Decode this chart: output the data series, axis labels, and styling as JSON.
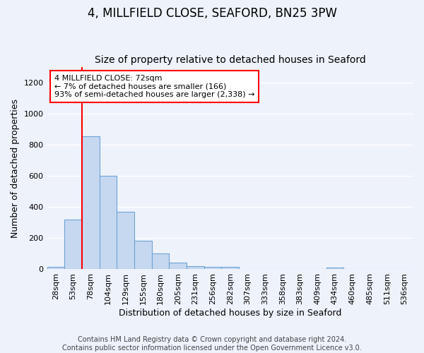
{
  "title": "4, MILLFIELD CLOSE, SEAFORD, BN25 3PW",
  "subtitle": "Size of property relative to detached houses in Seaford",
  "xlabel": "Distribution of detached houses by size in Seaford",
  "ylabel": "Number of detached properties",
  "bin_labels": [
    "28sqm",
    "53sqm",
    "78sqm",
    "104sqm",
    "129sqm",
    "155sqm",
    "180sqm",
    "205sqm",
    "231sqm",
    "256sqm",
    "282sqm",
    "307sqm",
    "333sqm",
    "358sqm",
    "383sqm",
    "409sqm",
    "434sqm",
    "460sqm",
    "485sqm",
    "511sqm",
    "536sqm"
  ],
  "bar_values": [
    15,
    320,
    855,
    600,
    370,
    185,
    100,
    45,
    20,
    15,
    15,
    0,
    0,
    0,
    0,
    0,
    10,
    0,
    0,
    0,
    0
  ],
  "bar_color": "#c5d8f0",
  "bar_edge_color": "#6ea3d4",
  "red_line_index": 2,
  "annotation_text": "4 MILLFIELD CLOSE: 72sqm\n← 7% of detached houses are smaller (166)\n93% of semi-detached houses are larger (2,338) →",
  "annotation_box_color": "white",
  "annotation_box_edge_color": "red",
  "ylim": [
    0,
    1300
  ],
  "yticks": [
    0,
    200,
    400,
    600,
    800,
    1000,
    1200
  ],
  "footer": "Contains HM Land Registry data © Crown copyright and database right 2024.\nContains public sector information licensed under the Open Government Licence v3.0.",
  "background_color": "#edf2fb",
  "grid_color": "#ffffff",
  "title_fontsize": 12,
  "subtitle_fontsize": 10,
  "axis_label_fontsize": 9,
  "tick_fontsize": 8,
  "annotation_fontsize": 8,
  "footer_fontsize": 7
}
